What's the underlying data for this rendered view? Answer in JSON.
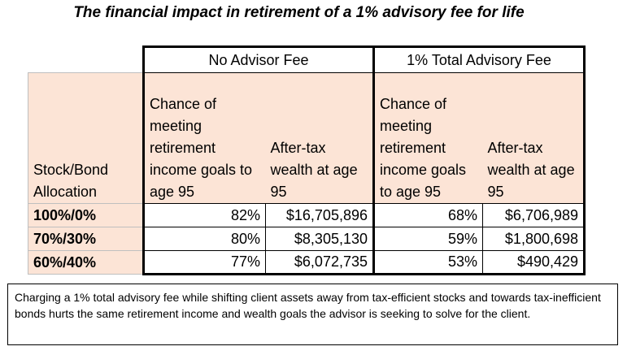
{
  "title": "The financial impact in retirement of a 1% advisory fee for life",
  "table": {
    "groups": [
      "No Advisor Fee",
      "1% Total Advisory Fee"
    ],
    "row_header": "Stock/Bond Allocation",
    "columns": [
      "Chance of meeting retirement income goals to age 95",
      "After-tax wealth at age 95",
      "Chance of meeting retirement income goals to age 95",
      "After-tax wealth at age 95"
    ],
    "rows": [
      {
        "allocation": "100%/0%",
        "no_fee_chance": "82%",
        "no_fee_wealth": "$16,705,896",
        "fee_chance": "68%",
        "fee_wealth": "$6,706,989"
      },
      {
        "allocation": "70%/30%",
        "no_fee_chance": "80%",
        "no_fee_wealth": "$8,305,130",
        "fee_chance": "59%",
        "fee_wealth": "$1,800,698"
      },
      {
        "allocation": "60%/40%",
        "no_fee_chance": "77%",
        "no_fee_wealth": "$6,072,735",
        "fee_chance": "53%",
        "fee_wealth": "$490,429"
      }
    ]
  },
  "note": "Charging a 1% total advisory fee while shifting client assets away from tax-efficient stocks and towards tax-inefficient bonds hurts the same retirement income and wealth goals the advisor is seeking to solve for the client."
}
